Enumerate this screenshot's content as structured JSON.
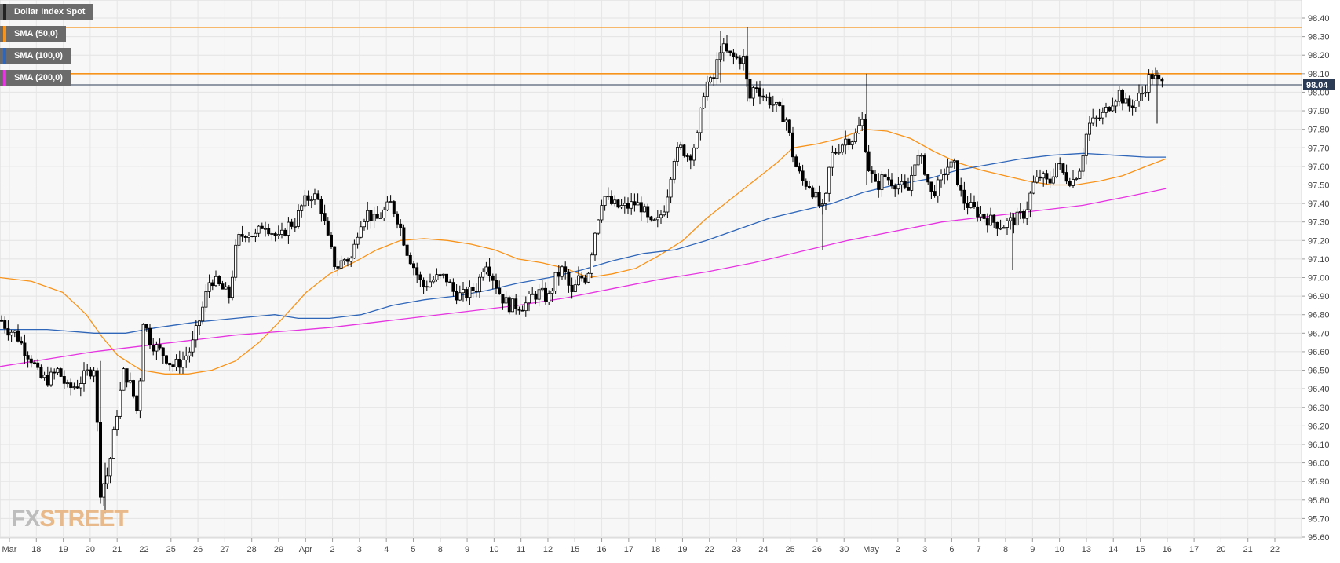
{
  "chart_data": {
    "type": "candlestick",
    "title": "Dollar Index Spot",
    "y_range": [
      95.6,
      98.45
    ],
    "y_ticks": [
      "98.40",
      "98.30",
      "98.20",
      "98.10",
      "98.00",
      "97.90",
      "97.80",
      "97.70",
      "97.60",
      "97.50",
      "97.40",
      "97.30",
      "97.20",
      "97.10",
      "97.00",
      "96.90",
      "96.80",
      "96.70",
      "96.60",
      "96.50",
      "96.40",
      "96.30",
      "96.20",
      "96.10",
      "96.00",
      "95.90",
      "95.80",
      "95.70",
      "95.60"
    ],
    "x_labels": [
      "Mar",
      "18",
      "19",
      "20",
      "21",
      "22",
      "25",
      "26",
      "27",
      "28",
      "29",
      "Apr",
      "2",
      "3",
      "4",
      "5",
      "8",
      "9",
      "10",
      "11",
      "12",
      "15",
      "16",
      "17",
      "18",
      "19",
      "22",
      "23",
      "24",
      "25",
      "26",
      "30",
      "May",
      "2",
      "3",
      "6",
      "7",
      "8",
      "9",
      "10",
      "13",
      "14",
      "15",
      "16",
      "17",
      "20",
      "21",
      "22"
    ],
    "current_price": "98.04",
    "horizontal_levels": [
      98.35,
      98.1
    ],
    "legend": [
      {
        "label": "SMA (50,0)",
        "color": "#f7931a"
      },
      {
        "label": "SMA (100,0)",
        "color": "#2f66b8"
      },
      {
        "label": "SMA (200,0)",
        "color": "#e535e0"
      }
    ],
    "close_path": [
      [
        0,
        96.78
      ],
      [
        10,
        96.72
      ],
      [
        20,
        96.7
      ],
      [
        30,
        96.62
      ],
      [
        42,
        96.55
      ],
      [
        50,
        96.46
      ],
      [
        62,
        96.45
      ],
      [
        74,
        96.5
      ],
      [
        86,
        96.4
      ],
      [
        98,
        96.42
      ],
      [
        110,
        96.48
      ],
      [
        120,
        96.52
      ],
      [
        128,
        95.85
      ],
      [
        138,
        95.95
      ],
      [
        148,
        96.25
      ],
      [
        158,
        96.5
      ],
      [
        168,
        96.4
      ],
      [
        176,
        96.25
      ],
      [
        182,
        96.78
      ],
      [
        192,
        96.65
      ],
      [
        200,
        96.62
      ],
      [
        210,
        96.58
      ],
      [
        220,
        96.52
      ],
      [
        232,
        96.55
      ],
      [
        244,
        96.62
      ],
      [
        256,
        96.8
      ],
      [
        268,
        97.0
      ],
      [
        280,
        96.95
      ],
      [
        292,
        96.9
      ],
      [
        302,
        97.2
      ],
      [
        314,
        97.25
      ],
      [
        326,
        97.22
      ],
      [
        336,
        97.3
      ],
      [
        346,
        97.25
      ],
      [
        356,
        97.2
      ],
      [
        366,
        97.28
      ],
      [
        376,
        97.3
      ],
      [
        386,
        97.4
      ],
      [
        398,
        97.45
      ],
      [
        408,
        97.4
      ],
      [
        418,
        97.2
      ],
      [
        428,
        97.05
      ],
      [
        438,
        97.1
      ],
      [
        448,
        97.1
      ],
      [
        458,
        97.3
      ],
      [
        468,
        97.35
      ],
      [
        478,
        97.3
      ],
      [
        488,
        97.35
      ],
      [
        498,
        97.4
      ],
      [
        508,
        97.3
      ],
      [
        518,
        97.15
      ],
      [
        528,
        97.05
      ],
      [
        538,
        96.95
      ],
      [
        548,
        96.98
      ],
      [
        558,
        97.0
      ],
      [
        568,
        97.0
      ],
      [
        578,
        96.92
      ],
      [
        588,
        96.9
      ],
      [
        598,
        96.92
      ],
      [
        608,
        96.95
      ],
      [
        618,
        97.1
      ],
      [
        628,
        97.0
      ],
      [
        638,
        96.9
      ],
      [
        648,
        96.85
      ],
      [
        658,
        96.85
      ],
      [
        668,
        96.85
      ],
      [
        678,
        96.9
      ],
      [
        688,
        96.92
      ],
      [
        698,
        96.88
      ],
      [
        708,
        97.0
      ],
      [
        718,
        97.05
      ],
      [
        728,
        96.9
      ],
      [
        738,
        97.0
      ],
      [
        748,
        97.0
      ],
      [
        758,
        97.25
      ],
      [
        768,
        97.45
      ],
      [
        778,
        97.4
      ],
      [
        788,
        97.38
      ],
      [
        798,
        97.38
      ],
      [
        808,
        97.4
      ],
      [
        818,
        97.38
      ],
      [
        828,
        97.28
      ],
      [
        838,
        97.3
      ],
      [
        848,
        97.4
      ],
      [
        858,
        97.65
      ],
      [
        868,
        97.7
      ],
      [
        878,
        97.65
      ],
      [
        888,
        97.75
      ],
      [
        898,
        98.05
      ],
      [
        908,
        98.05
      ],
      [
        918,
        98.25
      ],
      [
        928,
        98.2
      ],
      [
        938,
        98.18
      ],
      [
        948,
        98.18
      ],
      [
        954,
        97.95
      ],
      [
        962,
        98.05
      ],
      [
        972,
        97.98
      ],
      [
        982,
        97.95
      ],
      [
        992,
        97.9
      ],
      [
        1002,
        97.85
      ],
      [
        1012,
        97.62
      ],
      [
        1022,
        97.52
      ],
      [
        1032,
        97.5
      ],
      [
        1042,
        97.4
      ],
      [
        1050,
        97.35
      ],
      [
        1058,
        97.65
      ],
      [
        1068,
        97.7
      ],
      [
        1078,
        97.75
      ],
      [
        1088,
        97.75
      ],
      [
        1098,
        97.85
      ],
      [
        1106,
        97.6
      ],
      [
        1116,
        97.48
      ],
      [
        1126,
        97.55
      ],
      [
        1136,
        97.52
      ],
      [
        1146,
        97.5
      ],
      [
        1156,
        97.45
      ],
      [
        1166,
        97.65
      ],
      [
        1176,
        97.62
      ],
      [
        1186,
        97.45
      ],
      [
        1196,
        97.5
      ],
      [
        1206,
        97.6
      ],
      [
        1216,
        97.6
      ],
      [
        1226,
        97.42
      ],
      [
        1236,
        97.38
      ],
      [
        1246,
        97.35
      ],
      [
        1256,
        97.32
      ],
      [
        1266,
        97.3
      ],
      [
        1276,
        97.28
      ],
      [
        1286,
        97.3
      ],
      [
        1296,
        97.32
      ],
      [
        1306,
        97.35
      ],
      [
        1316,
        97.5
      ],
      [
        1326,
        97.55
      ],
      [
        1336,
        97.5
      ],
      [
        1346,
        97.62
      ],
      [
        1356,
        97.55
      ],
      [
        1366,
        97.52
      ],
      [
        1376,
        97.6
      ],
      [
        1386,
        97.82
      ],
      [
        1396,
        97.85
      ],
      [
        1406,
        97.88
      ],
      [
        1416,
        97.95
      ],
      [
        1426,
        98.0
      ],
      [
        1436,
        97.92
      ],
      [
        1446,
        97.95
      ],
      [
        1456,
        98.0
      ],
      [
        1466,
        98.1
      ],
      [
        1476,
        98.05
      ],
      [
        1484,
        98.04
      ]
    ],
    "long_wicks": [
      {
        "x": 128,
        "high": 96.55,
        "low": 95.78
      },
      {
        "x": 134,
        "high": 96.0,
        "low": 95.73
      },
      {
        "x": 1048,
        "high": 97.4,
        "low": 97.15
      },
      {
        "x": 1104,
        "high": 98.1,
        "low": 97.5
      },
      {
        "x": 1290,
        "high": 97.35,
        "low": 97.04
      },
      {
        "x": 1474,
        "high": 98.12,
        "low": 97.83
      },
      {
        "x": 952,
        "high": 98.35,
        "low": 97.95
      },
      {
        "x": 918,
        "high": 98.33,
        "low": 98.05
      }
    ],
    "sma50_path": [
      [
        0,
        97.0
      ],
      [
        40,
        96.98
      ],
      [
        80,
        96.92
      ],
      [
        110,
        96.8
      ],
      [
        130,
        96.68
      ],
      [
        150,
        96.58
      ],
      [
        180,
        96.5
      ],
      [
        210,
        96.48
      ],
      [
        240,
        96.48
      ],
      [
        270,
        96.5
      ],
      [
        300,
        96.55
      ],
      [
        330,
        96.65
      ],
      [
        360,
        96.78
      ],
      [
        390,
        96.92
      ],
      [
        420,
        97.02
      ],
      [
        450,
        97.08
      ],
      [
        480,
        97.15
      ],
      [
        510,
        97.2
      ],
      [
        540,
        97.21
      ],
      [
        570,
        97.2
      ],
      [
        600,
        97.18
      ],
      [
        630,
        97.15
      ],
      [
        660,
        97.1
      ],
      [
        690,
        97.08
      ],
      [
        720,
        97.05
      ],
      [
        750,
        97.0
      ],
      [
        780,
        97.02
      ],
      [
        810,
        97.05
      ],
      [
        840,
        97.12
      ],
      [
        870,
        97.2
      ],
      [
        900,
        97.32
      ],
      [
        930,
        97.42
      ],
      [
        960,
        97.52
      ],
      [
        990,
        97.62
      ],
      [
        1010,
        97.7
      ],
      [
        1040,
        97.72
      ],
      [
        1070,
        97.75
      ],
      [
        1100,
        97.8
      ],
      [
        1130,
        97.79
      ],
      [
        1160,
        97.75
      ],
      [
        1190,
        97.68
      ],
      [
        1220,
        97.62
      ],
      [
        1250,
        97.58
      ],
      [
        1280,
        97.55
      ],
      [
        1310,
        97.52
      ],
      [
        1340,
        97.5
      ],
      [
        1370,
        97.5
      ],
      [
        1400,
        97.52
      ],
      [
        1430,
        97.55
      ],
      [
        1460,
        97.6
      ],
      [
        1485,
        97.64
      ]
    ],
    "sma100_path": [
      [
        0,
        96.72
      ],
      [
        60,
        96.72
      ],
      [
        120,
        96.7
      ],
      [
        160,
        96.7
      ],
      [
        200,
        96.73
      ],
      [
        250,
        96.76
      ],
      [
        300,
        96.78
      ],
      [
        350,
        96.8
      ],
      [
        380,
        96.78
      ],
      [
        420,
        96.78
      ],
      [
        460,
        96.8
      ],
      [
        500,
        96.85
      ],
      [
        540,
        96.88
      ],
      [
        580,
        96.9
      ],
      [
        620,
        96.93
      ],
      [
        660,
        96.97
      ],
      [
        700,
        97.0
      ],
      [
        740,
        97.04
      ],
      [
        780,
        97.09
      ],
      [
        820,
        97.13
      ],
      [
        860,
        97.15
      ],
      [
        900,
        97.2
      ],
      [
        940,
        97.26
      ],
      [
        980,
        97.32
      ],
      [
        1020,
        97.36
      ],
      [
        1060,
        97.4
      ],
      [
        1100,
        97.46
      ],
      [
        1140,
        97.5
      ],
      [
        1180,
        97.53
      ],
      [
        1220,
        97.58
      ],
      [
        1260,
        97.61
      ],
      [
        1300,
        97.64
      ],
      [
        1340,
        97.66
      ],
      [
        1380,
        97.67
      ],
      [
        1420,
        97.66
      ],
      [
        1460,
        97.65
      ],
      [
        1485,
        97.65
      ]
    ],
    "sma200_path": [
      [
        0,
        96.52
      ],
      [
        60,
        96.56
      ],
      [
        120,
        96.6
      ],
      [
        180,
        96.63
      ],
      [
        240,
        96.66
      ],
      [
        300,
        96.69
      ],
      [
        360,
        96.71
      ],
      [
        420,
        96.73
      ],
      [
        480,
        96.76
      ],
      [
        540,
        96.79
      ],
      [
        600,
        96.82
      ],
      [
        660,
        96.85
      ],
      [
        720,
        96.89
      ],
      [
        780,
        96.94
      ],
      [
        840,
        96.99
      ],
      [
        900,
        97.03
      ],
      [
        960,
        97.08
      ],
      [
        1020,
        97.14
      ],
      [
        1080,
        97.2
      ],
      [
        1140,
        97.25
      ],
      [
        1200,
        97.3
      ],
      [
        1260,
        97.33
      ],
      [
        1320,
        97.36
      ],
      [
        1380,
        97.39
      ],
      [
        1440,
        97.44
      ],
      [
        1485,
        97.48
      ]
    ]
  },
  "logo": {
    "part1": "FX",
    "part2": "STREET"
  }
}
